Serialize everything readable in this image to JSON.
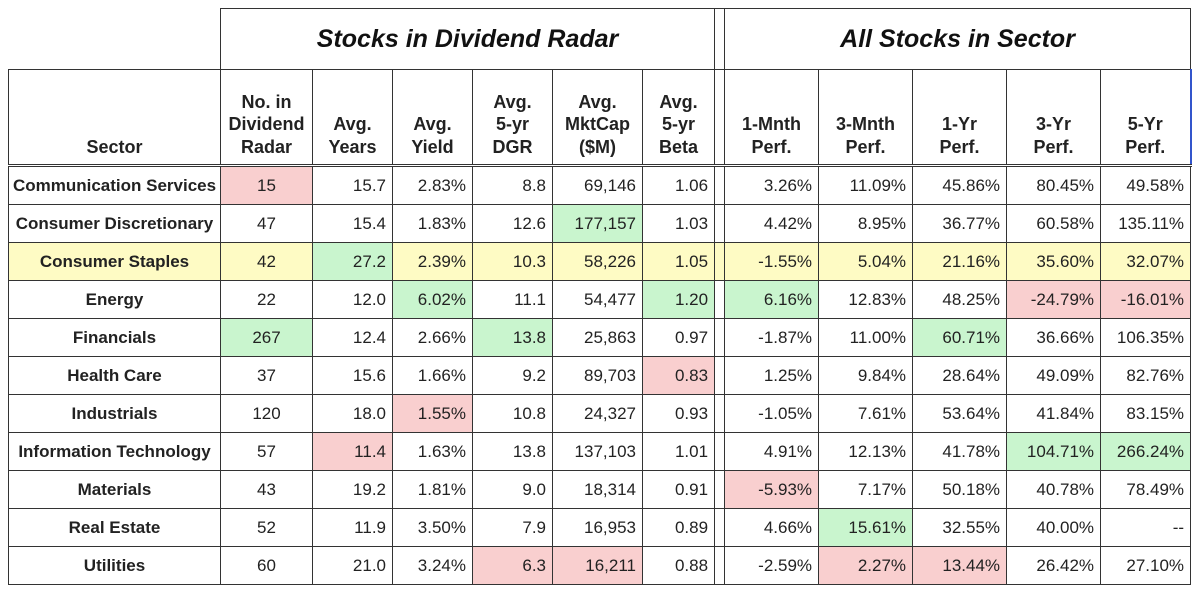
{
  "groups": {
    "left": "Stocks in Dividend Radar",
    "right": "All Stocks in Sector"
  },
  "headers": {
    "sector": "Sector",
    "count": [
      "No. in",
      "Dividend",
      "Radar"
    ],
    "years": [
      "Avg.",
      "Years"
    ],
    "yield": [
      "Avg.",
      "Yield"
    ],
    "dgr": [
      "Avg.",
      "5-yr",
      "DGR"
    ],
    "mktcap": [
      "Avg.",
      "MktCap",
      "($M)"
    ],
    "beta": [
      "Avg.",
      "5-yr",
      "Beta"
    ],
    "perf1m": [
      "1-Mnth",
      "Perf."
    ],
    "perf3m": [
      "3-Mnth",
      "Perf."
    ],
    "perf1y": [
      "1-Yr",
      "Perf."
    ],
    "perf3y": [
      "3-Yr",
      "Perf."
    ],
    "perf5y": [
      "5-Yr",
      "Perf."
    ]
  },
  "highlight_colors": {
    "green": "#c9f5ce",
    "red": "#f9cfcf",
    "yellow": "#fefbc4"
  },
  "rows": [
    {
      "sector": "Communication Services",
      "count": "15",
      "years": "15.7",
      "yield": "2.83%",
      "dgr": "8.8",
      "mktcap": "69,146",
      "beta": "1.06",
      "perf1m": "3.26%",
      "perf3m": "11.09%",
      "perf1y": "45.86%",
      "perf3y": "80.45%",
      "perf5y": "49.58%"
    },
    {
      "sector": "Consumer Discretionary",
      "count": "47",
      "years": "15.4",
      "yield": "1.83%",
      "dgr": "12.6",
      "mktcap": "177,157",
      "beta": "1.03",
      "perf1m": "4.42%",
      "perf3m": "8.95%",
      "perf1y": "36.77%",
      "perf3y": "60.58%",
      "perf5y": "135.11%"
    },
    {
      "sector": "Consumer Staples",
      "count": "42",
      "years": "27.2",
      "yield": "2.39%",
      "dgr": "10.3",
      "mktcap": "58,226",
      "beta": "1.05",
      "perf1m": "-1.55%",
      "perf3m": "5.04%",
      "perf1y": "21.16%",
      "perf3y": "35.60%",
      "perf5y": "32.07%"
    },
    {
      "sector": "Energy",
      "count": "22",
      "years": "12.0",
      "yield": "6.02%",
      "dgr": "11.1",
      "mktcap": "54,477",
      "beta": "1.20",
      "perf1m": "6.16%",
      "perf3m": "12.83%",
      "perf1y": "48.25%",
      "perf3y": "-24.79%",
      "perf5y": "-16.01%"
    },
    {
      "sector": "Financials",
      "count": "267",
      "years": "12.4",
      "yield": "2.66%",
      "dgr": "13.8",
      "mktcap": "25,863",
      "beta": "0.97",
      "perf1m": "-1.87%",
      "perf3m": "11.00%",
      "perf1y": "60.71%",
      "perf3y": "36.66%",
      "perf5y": "106.35%"
    },
    {
      "sector": "Health Care",
      "count": "37",
      "years": "15.6",
      "yield": "1.66%",
      "dgr": "9.2",
      "mktcap": "89,703",
      "beta": "0.83",
      "perf1m": "1.25%",
      "perf3m": "9.84%",
      "perf1y": "28.64%",
      "perf3y": "49.09%",
      "perf5y": "82.76%"
    },
    {
      "sector": "Industrials",
      "count": "120",
      "years": "18.0",
      "yield": "1.55%",
      "dgr": "10.8",
      "mktcap": "24,327",
      "beta": "0.93",
      "perf1m": "-1.05%",
      "perf3m": "7.61%",
      "perf1y": "53.64%",
      "perf3y": "41.84%",
      "perf5y": "83.15%"
    },
    {
      "sector": "Information Technology",
      "count": "57",
      "years": "11.4",
      "yield": "1.63%",
      "dgr": "13.8",
      "mktcap": "137,103",
      "beta": "1.01",
      "perf1m": "4.91%",
      "perf3m": "12.13%",
      "perf1y": "41.78%",
      "perf3y": "104.71%",
      "perf5y": "266.24%"
    },
    {
      "sector": "Materials",
      "count": "43",
      "years": "19.2",
      "yield": "1.81%",
      "dgr": "9.0",
      "mktcap": "18,314",
      "beta": "0.91",
      "perf1m": "-5.93%",
      "perf3m": "7.17%",
      "perf1y": "50.18%",
      "perf3y": "40.78%",
      "perf5y": "78.49%"
    },
    {
      "sector": "Real Estate",
      "count": "52",
      "years": "11.9",
      "yield": "3.50%",
      "dgr": "7.9",
      "mktcap": "16,953",
      "beta": "0.89",
      "perf1m": "4.66%",
      "perf3m": "15.61%",
      "perf1y": "32.55%",
      "perf3y": "40.00%",
      "perf5y": "--"
    },
    {
      "sector": "Utilities",
      "count": "60",
      "years": "21.0",
      "yield": "3.24%",
      "dgr": "6.3",
      "mktcap": "16,211",
      "beta": "0.88",
      "perf1m": "-2.59%",
      "perf3m": "2.27%",
      "perf1y": "13.44%",
      "perf3y": "26.42%",
      "perf5y": "27.10%"
    }
  ],
  "cell_highlights": [
    {
      "row": 0,
      "col": "count",
      "color": "red"
    },
    {
      "row": 1,
      "col": "mktcap",
      "color": "green"
    },
    {
      "row": 2,
      "col": "years",
      "color": "green"
    },
    {
      "row": 3,
      "col": "yield",
      "color": "green"
    },
    {
      "row": 3,
      "col": "beta",
      "color": "green"
    },
    {
      "row": 3,
      "col": "perf1m",
      "color": "green"
    },
    {
      "row": 3,
      "col": "perf3y",
      "color": "red"
    },
    {
      "row": 3,
      "col": "perf5y",
      "color": "red"
    },
    {
      "row": 4,
      "col": "count",
      "color": "green"
    },
    {
      "row": 4,
      "col": "dgr",
      "color": "green"
    },
    {
      "row": 4,
      "col": "perf1y",
      "color": "green"
    },
    {
      "row": 5,
      "col": "beta",
      "color": "red"
    },
    {
      "row": 6,
      "col": "yield",
      "color": "red"
    },
    {
      "row": 7,
      "col": "years",
      "color": "red"
    },
    {
      "row": 7,
      "col": "perf3y",
      "color": "green"
    },
    {
      "row": 7,
      "col": "perf5y",
      "color": "green"
    },
    {
      "row": 8,
      "col": "perf1m",
      "color": "red"
    },
    {
      "row": 9,
      "col": "perf3m",
      "color": "green"
    },
    {
      "row": 10,
      "col": "dgr",
      "color": "red"
    },
    {
      "row": 10,
      "col": "mktcap",
      "color": "red"
    },
    {
      "row": 10,
      "col": "perf3m",
      "color": "red"
    },
    {
      "row": 10,
      "col": "perf1y",
      "color": "red"
    }
  ],
  "yellow_row": 2
}
